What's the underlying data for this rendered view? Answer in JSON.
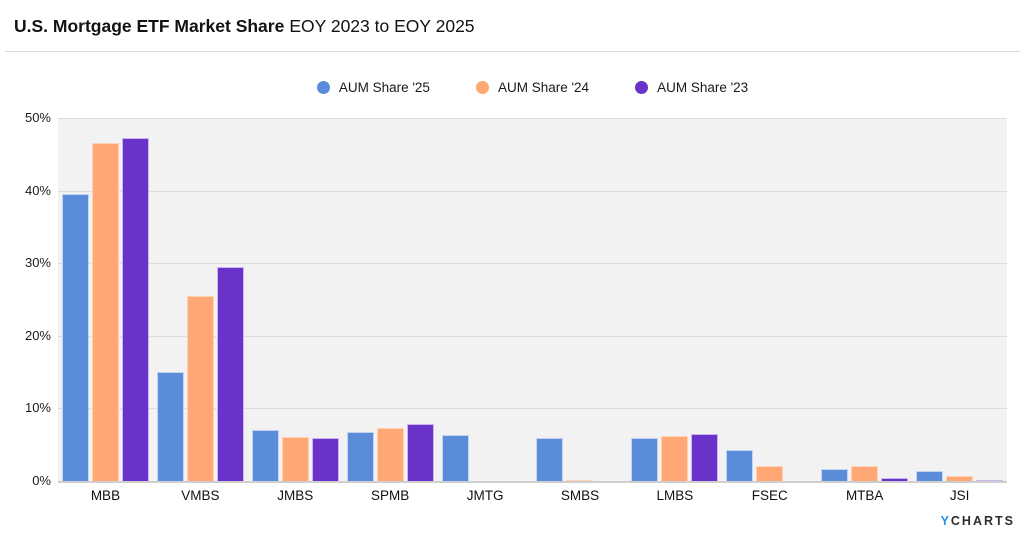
{
  "header": {
    "title": "U.S. Mortgage ETF Market Share",
    "subtitle": "EOY 2023 to EOY 2025"
  },
  "watermark": {
    "prefix": "Y",
    "rest": "CHARTS"
  },
  "chart_data": {
    "type": "bar",
    "title": "U.S. Mortgage ETF Market Share",
    "subtitle": "EOY 2023 to EOY 2025",
    "categories": [
      "MBB",
      "VMBS",
      "JMBS",
      "SPMB",
      "JMTG",
      "SMBS",
      "LMBS",
      "FSEC",
      "MTBA",
      "JSI"
    ],
    "series": [
      {
        "name": "AUM Share '25",
        "color": "#5A8CD9",
        "border_color": "#c3d4f2",
        "values": [
          39.6,
          15.0,
          7.0,
          6.8,
          6.4,
          5.9,
          5.9,
          4.3,
          1.6,
          1.4
        ]
      },
      {
        "name": "AUM Share '24",
        "color": "#FFA875",
        "border_color": "#ffd2b3",
        "values": [
          46.5,
          25.5,
          6.1,
          7.3,
          null,
          0.1,
          6.2,
          2.0,
          2.0,
          0.7
        ]
      },
      {
        "name": "AUM Share '23",
        "color": "#6932C8",
        "border_color": "#cdb6f0",
        "values": [
          47.3,
          29.5,
          5.9,
          7.9,
          null,
          null,
          6.5,
          null,
          0.4,
          0.15
        ]
      }
    ],
    "ylabel": "",
    "xlabel": "",
    "ylim": [
      0,
      50
    ],
    "y_ticks": [
      "50%",
      "40%",
      "30%",
      "20%",
      "10%",
      "0%"
    ],
    "grid": true,
    "plot_background": "#f3f2f2",
    "gridline_color": "#dcdcdc",
    "legend_position": "top-center"
  }
}
